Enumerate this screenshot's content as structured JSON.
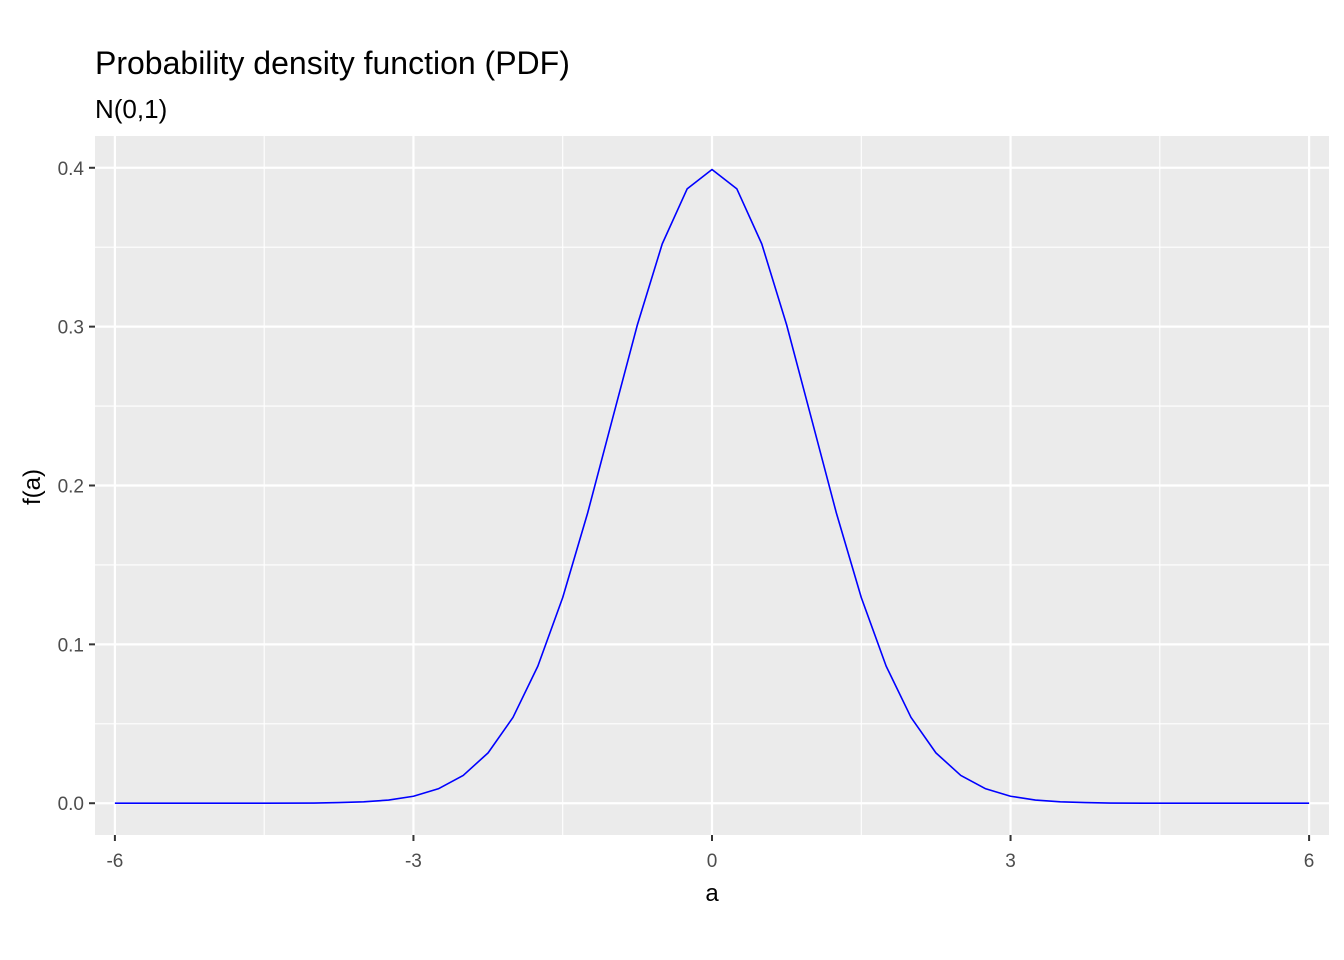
{
  "chart_data": {
    "type": "line",
    "title": "Probability density function (PDF)",
    "subtitle": "N(0,1)",
    "xlabel": "a",
    "ylabel": "f(a)",
    "xlim": [
      -6.2,
      6.2
    ],
    "ylim": [
      -0.02,
      0.42
    ],
    "x_ticks": [
      -6,
      -3,
      0,
      3,
      6
    ],
    "x_tick_labels": [
      "-6",
      "-3",
      "0",
      "3",
      "6"
    ],
    "y_ticks": [
      0.0,
      0.1,
      0.2,
      0.3,
      0.4
    ],
    "y_tick_labels": [
      "0.0",
      "0.1",
      "0.2",
      "0.3",
      "0.4"
    ],
    "grid": true,
    "colors": {
      "panel_background": "#ebebeb",
      "grid_major": "#ffffff",
      "line": "#0000ff"
    },
    "series": [
      {
        "x": [
          -6.0,
          -5.5,
          -5.0,
          -4.5,
          -4.0,
          -3.75,
          -3.5,
          -3.25,
          -3.0,
          -2.75,
          -2.5,
          -2.25,
          -2.0,
          -1.75,
          -1.5,
          -1.25,
          -1.0,
          -0.75,
          -0.5,
          -0.25,
          0.0,
          0.25,
          0.5,
          0.75,
          1.0,
          1.25,
          1.5,
          1.75,
          2.0,
          2.25,
          2.5,
          2.75,
          3.0,
          3.25,
          3.5,
          3.75,
          4.0,
          4.5,
          5.0,
          5.5,
          6.0
        ],
        "y": [
          0.0,
          0.0,
          0.0,
          0.0,
          0.0001,
          0.0004,
          0.0009,
          0.002,
          0.0044,
          0.0091,
          0.0175,
          0.0317,
          0.054,
          0.0863,
          0.1295,
          0.1826,
          0.242,
          0.3011,
          0.3521,
          0.3867,
          0.3989,
          0.3867,
          0.3521,
          0.3011,
          0.242,
          0.1826,
          0.1295,
          0.0863,
          0.054,
          0.0317,
          0.0175,
          0.0091,
          0.0044,
          0.002,
          0.0009,
          0.0004,
          0.0001,
          0.0,
          0.0,
          0.0,
          0.0
        ]
      }
    ]
  }
}
